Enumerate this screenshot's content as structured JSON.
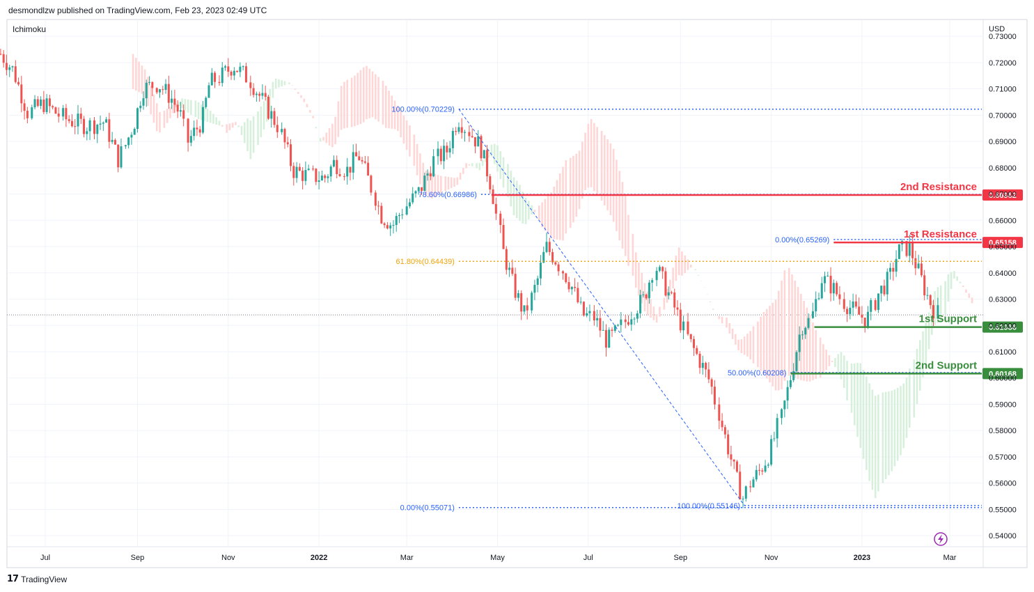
{
  "header": {
    "publisher_line": "desmondlzw published on TradingView.com, Feb 23, 2023 02:49 UTC"
  },
  "footer": {
    "brand": "TradingView"
  },
  "colors": {
    "resistance": "#f23645",
    "support": "#388e3c",
    "fib": "#2962ff",
    "fib_orange": "#f0a30a",
    "candle_up": "#26a69a",
    "candle_down": "#ef5350",
    "cloud_bear": "#ffd6d6",
    "cloud_bull": "#d7f0dc"
  },
  "chart_data": {
    "type": "candlestick",
    "indicator": "Ichimoku",
    "currency": "USD",
    "y_ticks": [
      "0.73000",
      "0.72000",
      "0.71000",
      "0.70000",
      "0.69000",
      "0.68000",
      "0.67000",
      "0.66000",
      "0.65000",
      "0.64000",
      "0.63000",
      "0.62000",
      "0.61000",
      "0.60000",
      "0.59000",
      "0.58000",
      "0.57000",
      "0.56000",
      "0.55000",
      "0.54000"
    ],
    "x_ticks": [
      "Jul",
      "Sep",
      "Nov",
      "2022",
      "Mar",
      "May",
      "Jul",
      "Sep",
      "Nov",
      "2023",
      "Mar"
    ],
    "ylim": [
      0.5358,
      0.7364
    ],
    "price_path": [
      [
        "2021-06-01",
        0.7233
      ],
      [
        "2021-06-10",
        0.717
      ],
      [
        "2021-06-20",
        0.701
      ],
      [
        "2021-06-30",
        0.7045
      ],
      [
        "2021-07-15",
        0.6985
      ],
      [
        "2021-07-30",
        0.696
      ],
      [
        "2021-08-10",
        0.6975
      ],
      [
        "2021-08-20",
        0.683
      ],
      [
        "2021-08-31",
        0.6985
      ],
      [
        "2021-09-05",
        0.71
      ],
      [
        "2021-09-15",
        0.712
      ],
      [
        "2021-09-25",
        0.706
      ],
      [
        "2021-10-01",
        0.6995
      ],
      [
        "2021-10-05",
        0.69
      ],
      [
        "2021-10-15",
        0.698
      ],
      [
        "2021-10-20",
        0.712
      ],
      [
        "2021-10-28",
        0.715
      ],
      [
        "2021-11-05",
        0.719
      ],
      [
        "2021-11-15",
        0.714
      ],
      [
        "2021-11-25",
        0.705
      ],
      [
        "2021-12-05",
        0.696
      ],
      [
        "2021-12-15",
        0.679
      ],
      [
        "2021-12-25",
        0.677
      ],
      [
        "2022-01-05",
        0.676
      ],
      [
        "2022-01-12",
        0.682
      ],
      [
        "2022-01-20",
        0.679
      ],
      [
        "2022-01-28",
        0.685
      ],
      [
        "2022-02-05",
        0.674
      ],
      [
        "2022-02-12",
        0.662
      ],
      [
        "2022-02-20",
        0.658
      ],
      [
        "2022-02-28",
        0.665
      ],
      [
        "2022-03-10",
        0.671
      ],
      [
        "2022-03-20",
        0.683
      ],
      [
        "2022-03-28",
        0.686
      ],
      [
        "2022-04-05",
        0.699
      ],
      [
        "2022-04-12",
        0.694
      ],
      [
        "2022-04-20",
        0.688
      ],
      [
        "2022-04-28",
        0.672
      ],
      [
        "2022-05-05",
        0.648
      ],
      [
        "2022-05-12",
        0.635
      ],
      [
        "2022-05-20",
        0.624
      ],
      [
        "2022-05-28",
        0.637
      ],
      [
        "2022-06-03",
        0.65
      ],
      [
        "2022-06-10",
        0.645
      ],
      [
        "2022-06-20",
        0.635
      ],
      [
        "2022-06-28",
        0.624
      ],
      [
        "2022-07-05",
        0.623
      ],
      [
        "2022-07-14",
        0.614
      ],
      [
        "2022-07-22",
        0.618
      ],
      [
        "2022-07-30",
        0.625
      ],
      [
        "2022-08-08",
        0.63
      ],
      [
        "2022-08-15",
        0.643
      ],
      [
        "2022-08-22",
        0.635
      ],
      [
        "2022-08-30",
        0.625
      ],
      [
        "2022-09-07",
        0.614
      ],
      [
        "2022-09-14",
        0.607
      ],
      [
        "2022-09-22",
        0.598
      ],
      [
        "2022-09-30",
        0.58
      ],
      [
        "2022-10-05",
        0.57
      ],
      [
        "2022-10-10",
        0.56
      ],
      [
        "2022-10-14",
        0.554
      ],
      [
        "2022-10-18",
        0.56
      ],
      [
        "2022-10-25",
        0.565
      ],
      [
        "2022-11-01",
        0.572
      ],
      [
        "2022-11-08",
        0.585
      ],
      [
        "2022-11-15",
        0.602
      ],
      [
        "2022-11-22",
        0.62
      ],
      [
        "2022-11-28",
        0.622
      ],
      [
        "2022-12-05",
        0.638
      ],
      [
        "2022-12-12",
        0.635
      ],
      [
        "2022-12-20",
        0.629
      ],
      [
        "2022-12-28",
        0.625
      ],
      [
        "2023-01-05",
        0.622
      ],
      [
        "2023-01-12",
        0.632
      ],
      [
        "2023-01-20",
        0.638
      ],
      [
        "2023-01-26",
        0.648
      ],
      [
        "2023-02-02",
        0.65
      ],
      [
        "2023-02-08",
        0.641
      ],
      [
        "2023-02-14",
        0.632
      ],
      [
        "2023-02-20",
        0.625
      ],
      [
        "2023-02-23",
        0.624
      ]
    ],
    "horizontal_levels": [
      {
        "label": "2nd Resistance",
        "value": "0.66962",
        "kind": "resistance",
        "from": "2022-04-27"
      },
      {
        "label": "1st Resistance",
        "value": "0.65158",
        "kind": "resistance",
        "from": "2022-12-13"
      },
      {
        "label": "1st Support",
        "value": "0.61936",
        "kind": "support",
        "from": "2022-11-30"
      },
      {
        "label": "2nd Support",
        "value": "0.60168",
        "kind": "support",
        "from": "2022-11-14"
      }
    ],
    "fib_levels": [
      {
        "label": "100.00%(0.70229)",
        "value": 0.70229,
        "from": "2022-04-05",
        "color": "fib"
      },
      {
        "label": "78.60%(0.66986)",
        "value": 0.66986,
        "from": "2022-04-20",
        "color": "fib"
      },
      {
        "label": "61.80%(0.64439)",
        "value": 0.64439,
        "from": "2022-04-05",
        "color": "fib_orange"
      },
      {
        "label": "0.00%(0.55071)",
        "value": 0.55071,
        "from": "2022-04-05",
        "color": "fib"
      },
      {
        "label": "0.00%(0.65269)",
        "value": 0.65269,
        "from": "2022-12-13",
        "color": "fib"
      },
      {
        "label": "50.00%(0.60208)",
        "value": 0.60208,
        "from": "2022-11-14",
        "color": "fib"
      },
      {
        "label": "100.00%(0.55146)",
        "value": 0.55146,
        "from": "2022-10-14",
        "color": "fib"
      }
    ],
    "trend_line": {
      "from": [
        "2022-04-05",
        0.70229
      ],
      "to": [
        "2022-10-14",
        0.55146
      ]
    },
    "current_price": 0.624
  }
}
